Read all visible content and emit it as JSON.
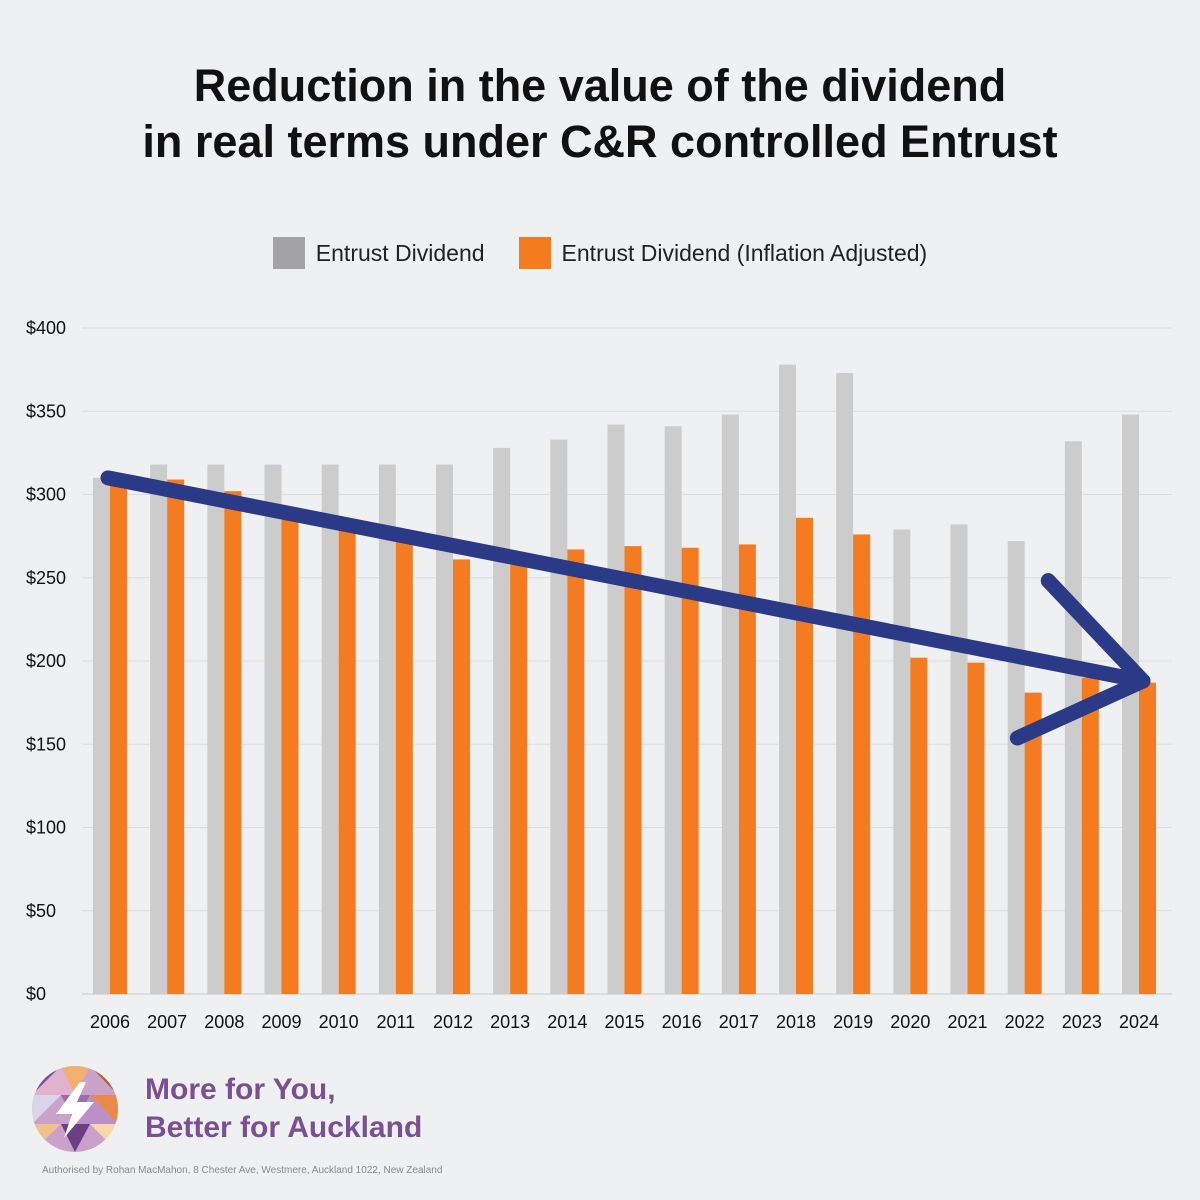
{
  "title_lines": [
    "Reduction in the value of the dividend",
    "in real terms under C&R controlled Entrust"
  ],
  "legend": [
    {
      "label": "Entrust Dividend",
      "color": "#a3a3a6"
    },
    {
      "label": "Entrust Dividend (Inflation Adjusted)",
      "color": "#f47b20"
    }
  ],
  "chart_data": {
    "type": "bar",
    "categories": [
      "2006",
      "2007",
      "2008",
      "2009",
      "2010",
      "2011",
      "2012",
      "2013",
      "2014",
      "2015",
      "2016",
      "2017",
      "2018",
      "2019",
      "2020",
      "2021",
      "2022",
      "2023",
      "2024"
    ],
    "series": [
      {
        "name": "Entrust Dividend",
        "color": "#cccccc",
        "values": [
          310,
          318,
          318,
          318,
          318,
          318,
          318,
          328,
          333,
          342,
          341,
          348,
          378,
          373,
          279,
          282,
          272,
          332,
          348
        ]
      },
      {
        "name": "Entrust Dividend (Inflation Adjusted)",
        "color": "#f47b20",
        "values": [
          308,
          309,
          302,
          291,
          282,
          274,
          261,
          260,
          267,
          269,
          268,
          270,
          286,
          276,
          202,
          199,
          181,
          190,
          187
        ]
      }
    ],
    "ylim": [
      0,
      400
    ],
    "yticks": [
      0,
      50,
      100,
      150,
      200,
      250,
      300,
      350,
      400
    ],
    "ytick_labels": [
      "$0",
      "$50",
      "$100",
      "$150",
      "$200",
      "$250",
      "$300",
      "$350",
      "$400"
    ],
    "grid": true,
    "legend_position": "top-center",
    "annotation": {
      "type": "trend-arrow",
      "color": "#2b3a86",
      "from": {
        "x": "2006",
        "y": 310
      },
      "to": {
        "x": "2024",
        "y": 188
      }
    }
  },
  "brand": {
    "line1": "More for You,",
    "line2": "Better for Auckland",
    "logo": "lightning-bolt-mosaic-logo",
    "color": "#7b4f93"
  },
  "footer": {
    "authorised": "Authorised by Rohan MacMahon, 8 Chester Ave, Westmere, Auckland 1022, New Zealand"
  }
}
